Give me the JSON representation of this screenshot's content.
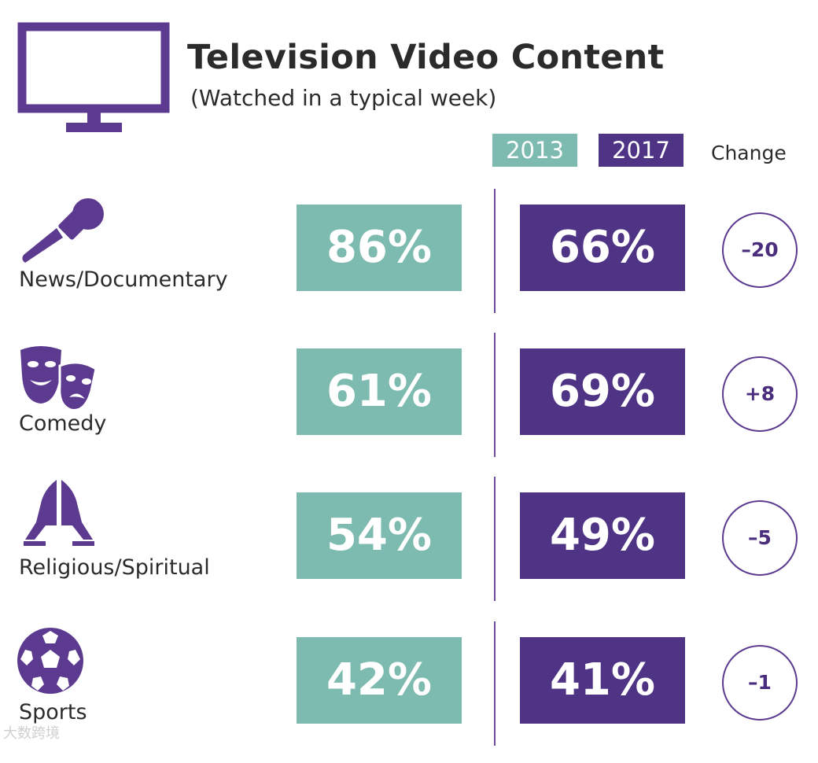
{
  "colors": {
    "accent_2013": "#7dbab0",
    "accent_2017": "#4f3486",
    "icon": "#5b3a8f",
    "text": "#2b2b2b"
  },
  "header": {
    "title": "Television Video Content",
    "subtitle": "(Watched in a typical week)",
    "icon": "television-icon"
  },
  "legend": {
    "label_2013": "2013",
    "label_2017": "2017",
    "change_label": "Change"
  },
  "rows": [
    {
      "category": "News/Documentary",
      "icon": "microphone-icon",
      "v2013": "86%",
      "v2017": "66%",
      "change": "–20"
    },
    {
      "category": "Comedy",
      "icon": "theater-masks-icon",
      "v2013": "61%",
      "v2017": "69%",
      "change": "+8"
    },
    {
      "category": "Religious/Spiritual",
      "icon": "praying-hands-icon",
      "v2013": "54%",
      "v2017": "49%",
      "change": "–5"
    },
    {
      "category": "Sports",
      "icon": "soccer-ball-icon",
      "v2013": "42%",
      "v2017": "41%",
      "change": "–1"
    }
  ],
  "chart_data": {
    "type": "table",
    "title": "Television Video Content",
    "subtitle": "(Watched in a typical week)",
    "columns": [
      "2013",
      "2017",
      "Change"
    ],
    "categories": [
      "News/Documentary",
      "Comedy",
      "Religious/Spiritual",
      "Sports"
    ],
    "series": [
      {
        "name": "2013",
        "values": [
          86,
          61,
          54,
          42
        ]
      },
      {
        "name": "2017",
        "values": [
          66,
          69,
          49,
          41
        ]
      }
    ],
    "change": [
      -20,
      8,
      -5,
      -1
    ],
    "unit": "%"
  },
  "watermark": "大数跨境"
}
